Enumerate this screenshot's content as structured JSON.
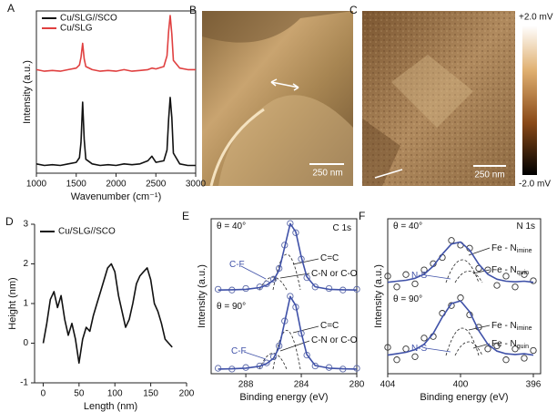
{
  "chart_data": [
    {
      "type": "line",
      "panel": "A",
      "xlabel": "Wavenumber (cm⁻¹)",
      "ylabel": "Intensity (a.u.)",
      "legend": "upper left",
      "x": [
        1000,
        1100,
        1200,
        1300,
        1400,
        1500,
        1540,
        1560,
        1580,
        1600,
        1620,
        1700,
        1800,
        1900,
        2000,
        2100,
        2200,
        2300,
        2400,
        2450,
        2500,
        2600,
        2640,
        2660,
        2680,
        2700,
        2720,
        2800,
        2900,
        3000
      ],
      "xlim": [
        1000,
        3000
      ],
      "xticks": [
        1000,
        1500,
        2000,
        2500,
        3000
      ],
      "ylim": [
        0,
        10.5
      ],
      "series": [
        {
          "name": "Cu/SLG//SCO",
          "color": "#111111",
          "values": [
            0.6,
            0.5,
            0.55,
            0.5,
            0.6,
            0.7,
            1.0,
            2.0,
            4.6,
            2.2,
            0.9,
            0.6,
            0.5,
            0.55,
            0.5,
            0.6,
            0.55,
            0.6,
            0.8,
            1.1,
            0.7,
            0.8,
            1.5,
            3.5,
            4.9,
            3.6,
            1.3,
            0.6,
            0.5,
            0.5
          ]
        },
        {
          "name": "Cu/SLG",
          "color": "#e04040",
          "values": [
            6.7,
            6.6,
            6.65,
            6.6,
            6.7,
            6.8,
            7.0,
            7.5,
            8.4,
            7.4,
            6.9,
            6.7,
            6.6,
            6.65,
            6.6,
            6.7,
            6.6,
            6.65,
            6.7,
            6.8,
            6.75,
            6.9,
            7.6,
            9.2,
            10.2,
            9.0,
            7.3,
            6.8,
            6.7,
            6.7
          ]
        }
      ]
    },
    {
      "type": "line",
      "panel": "D",
      "xlabel": "Length (nm)",
      "ylabel": "Height (nm)",
      "legend": "upper left",
      "x": [
        0,
        5,
        10,
        15,
        20,
        25,
        30,
        35,
        40,
        45,
        50,
        55,
        60,
        65,
        70,
        75,
        80,
        85,
        90,
        95,
        100,
        105,
        110,
        115,
        120,
        125,
        130,
        135,
        140,
        145,
        150,
        155,
        160,
        165,
        170,
        175,
        180
      ],
      "xlim": [
        -12,
        200
      ],
      "xticks": [
        0,
        50,
        100,
        150,
        200
      ],
      "ylim": [
        -1,
        3
      ],
      "yticks": [
        -1,
        0,
        1,
        2,
        3
      ],
      "series": [
        {
          "name": "Cu/SLG//SCO",
          "color": "#111111",
          "values": [
            0,
            0.5,
            1.1,
            1.3,
            0.9,
            1.2,
            0.6,
            0.2,
            0.5,
            0.1,
            -0.5,
            0.1,
            0.4,
            0.3,
            0.7,
            1.0,
            1.3,
            1.6,
            1.9,
            2.0,
            1.8,
            1.2,
            0.8,
            0.4,
            0.6,
            1.0,
            1.5,
            1.7,
            1.8,
            1.9,
            1.6,
            1.0,
            0.8,
            0.5,
            0.1,
            0.0,
            -0.1
          ]
        }
      ]
    },
    {
      "type": "line",
      "panel": "E",
      "xlabel": "Binding energy (eV)",
      "ylabel": "Intensity (a.u.)",
      "x": [
        290,
        289,
        288,
        287,
        286.5,
        286,
        285.6,
        285.2,
        284.8,
        284.4,
        284,
        283.6,
        283,
        282,
        281,
        280
      ],
      "xlim": [
        290.5,
        280
      ],
      "xticks": [
        288,
        284,
        280
      ],
      "ylim": [
        0,
        10
      ],
      "series": [
        {
          "color": "#5a68a8",
          "marker": "circle",
          "values": [
            5.45,
            5.4,
            5.5,
            5.6,
            5.8,
            6.1,
            6.8,
            8.3,
            9.7,
            9.1,
            7.4,
            6.2,
            5.6,
            5.5,
            5.4,
            5.45
          ]
        },
        {
          "color": "#3f51a8",
          "values": [
            5.4,
            5.42,
            5.45,
            5.56,
            5.72,
            6.04,
            6.68,
            8.18,
            9.68,
            9.15,
            7.54,
            6.26,
            5.61,
            5.45,
            5.42,
            5.4
          ]
        },
        {
          "color": "#5a68a8",
          "marker": "circle",
          "values": [
            0.35,
            0.3,
            0.4,
            0.5,
            0.7,
            1.1,
            1.8,
            3.4,
            5.0,
            4.3,
            2.6,
            1.2,
            0.5,
            0.4,
            0.3,
            0.35
          ]
        },
        {
          "color": "#3f51a8",
          "values": [
            0.3,
            0.32,
            0.36,
            0.48,
            0.65,
            1.0,
            1.7,
            3.34,
            4.98,
            4.4,
            2.64,
            1.24,
            0.53,
            0.36,
            0.32,
            0.3
          ]
        }
      ],
      "annotations": [
        {
          "text": "C 1s"
        },
        {
          "text": "θ = 40°"
        },
        {
          "text": "C=C"
        },
        {
          "text": "C-N or C-O"
        },
        {
          "text": "C-F"
        },
        {
          "text": "θ = 90°"
        },
        {
          "text": "C=C"
        },
        {
          "text": "C-N or C-O"
        },
        {
          "text": "C-F"
        }
      ]
    },
    {
      "type": "line",
      "panel": "F",
      "xlabel": "Binding energy (eV)",
      "ylabel": "Intensity (a.u.)",
      "x": [
        404,
        403.5,
        403,
        402.5,
        402,
        401.5,
        401,
        400.5,
        400,
        399.5,
        399,
        398.5,
        398,
        397.5,
        397,
        396.5,
        396
      ],
      "xlim": [
        404,
        395.6
      ],
      "xticks": [
        404,
        400,
        396
      ],
      "ylim": [
        0,
        10
      ],
      "series": [
        {
          "color": "#333333",
          "marker": "circle",
          "values": [
            6.3,
            5.6,
            6.4,
            5.8,
            6.7,
            7.1,
            7.5,
            8.6,
            8.3,
            8.1,
            6.8,
            6.7,
            5.7,
            6.3,
            5.6,
            6.4,
            6.0
          ]
        },
        {
          "color": "#3f51a8",
          "values": [
            5.9,
            5.97,
            6.03,
            6.16,
            6.42,
            6.94,
            7.72,
            8.37,
            8.5,
            7.98,
            7.07,
            6.42,
            6.1,
            5.97,
            5.93,
            5.97,
            5.9
          ]
        },
        {
          "color": "#333333",
          "marker": "circle",
          "values": [
            1.7,
            0.9,
            1.6,
            1.1,
            2.3,
            2.4,
            3.9,
            4.4,
            4.9,
            3.8,
            3.0,
            1.6,
            1.8,
            0.9,
            1.6,
            1.0,
            1.5
          ]
        },
        {
          "color": "#3f51a8",
          "values": [
            1.2,
            1.29,
            1.38,
            1.55,
            1.9,
            2.6,
            3.65,
            4.53,
            4.7,
            4.0,
            2.78,
            1.9,
            1.46,
            1.29,
            1.24,
            1.29,
            1.2
          ]
        }
      ],
      "annotations": [
        {
          "text": "N 1s"
        },
        {
          "text": "θ = 40°"
        },
        {
          "text": "Fe - N",
          "sub": "imine"
        },
        {
          "text": "Fe - N",
          "sub": "quin"
        },
        {
          "text": "N-S"
        },
        {
          "text": "θ = 90°"
        },
        {
          "text": "Fe - N",
          "sub": "imine"
        },
        {
          "text": "Fe - N",
          "sub": "quin"
        },
        {
          "text": "N-S"
        }
      ]
    }
  ],
  "images": [
    {
      "panel": "B",
      "scale_bar": "250 nm"
    },
    {
      "panel": "C",
      "scale_bar": "250 nm",
      "colorbar_max": "+2.0 mV",
      "colorbar_min": "-2.0 mV"
    }
  ]
}
